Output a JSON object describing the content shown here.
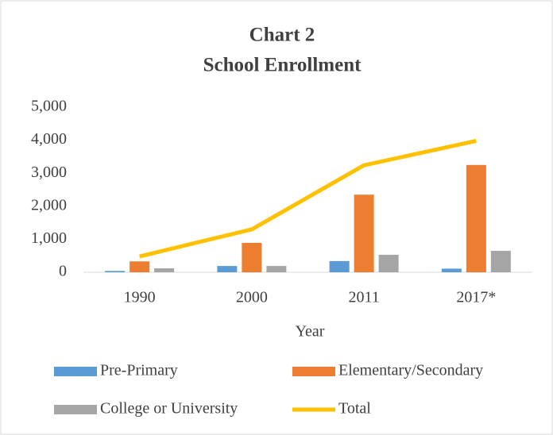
{
  "chart_data": {
    "type": "bar",
    "title": "Chart 2",
    "subtitle": "School Enrollment",
    "x_label": "Year",
    "categories": [
      "1990",
      "2000",
      "2011",
      "2017*"
    ],
    "series": [
      {
        "name": "Pre-Primary",
        "color": "#5b9bd5",
        "type": "bar",
        "values": [
          40,
          190,
          340,
          110
        ]
      },
      {
        "name": "Elementary/Secondary",
        "color": "#ed7d31",
        "type": "bar",
        "values": [
          330,
          890,
          2350,
          3250
        ]
      },
      {
        "name": "College or University",
        "color": "#a5a5a5",
        "type": "bar",
        "values": [
          120,
          190,
          530,
          650
        ]
      },
      {
        "name": "Total",
        "color": "#ffc000",
        "type": "line",
        "values": [
          480,
          1300,
          3240,
          3980
        ]
      }
    ],
    "ylim": [
      0,
      5000
    ],
    "yticks": [
      0,
      {
        "value": 1000,
        "label": "1,000"
      },
      {
        "value": 2000,
        "label": "2,000"
      },
      {
        "value": 3000,
        "label": "3,000"
      },
      {
        "value": 4000,
        "label": "4,000"
      },
      {
        "value": 5000,
        "label": "5,000"
      }
    ],
    "grid": false,
    "legend": "bottom"
  }
}
